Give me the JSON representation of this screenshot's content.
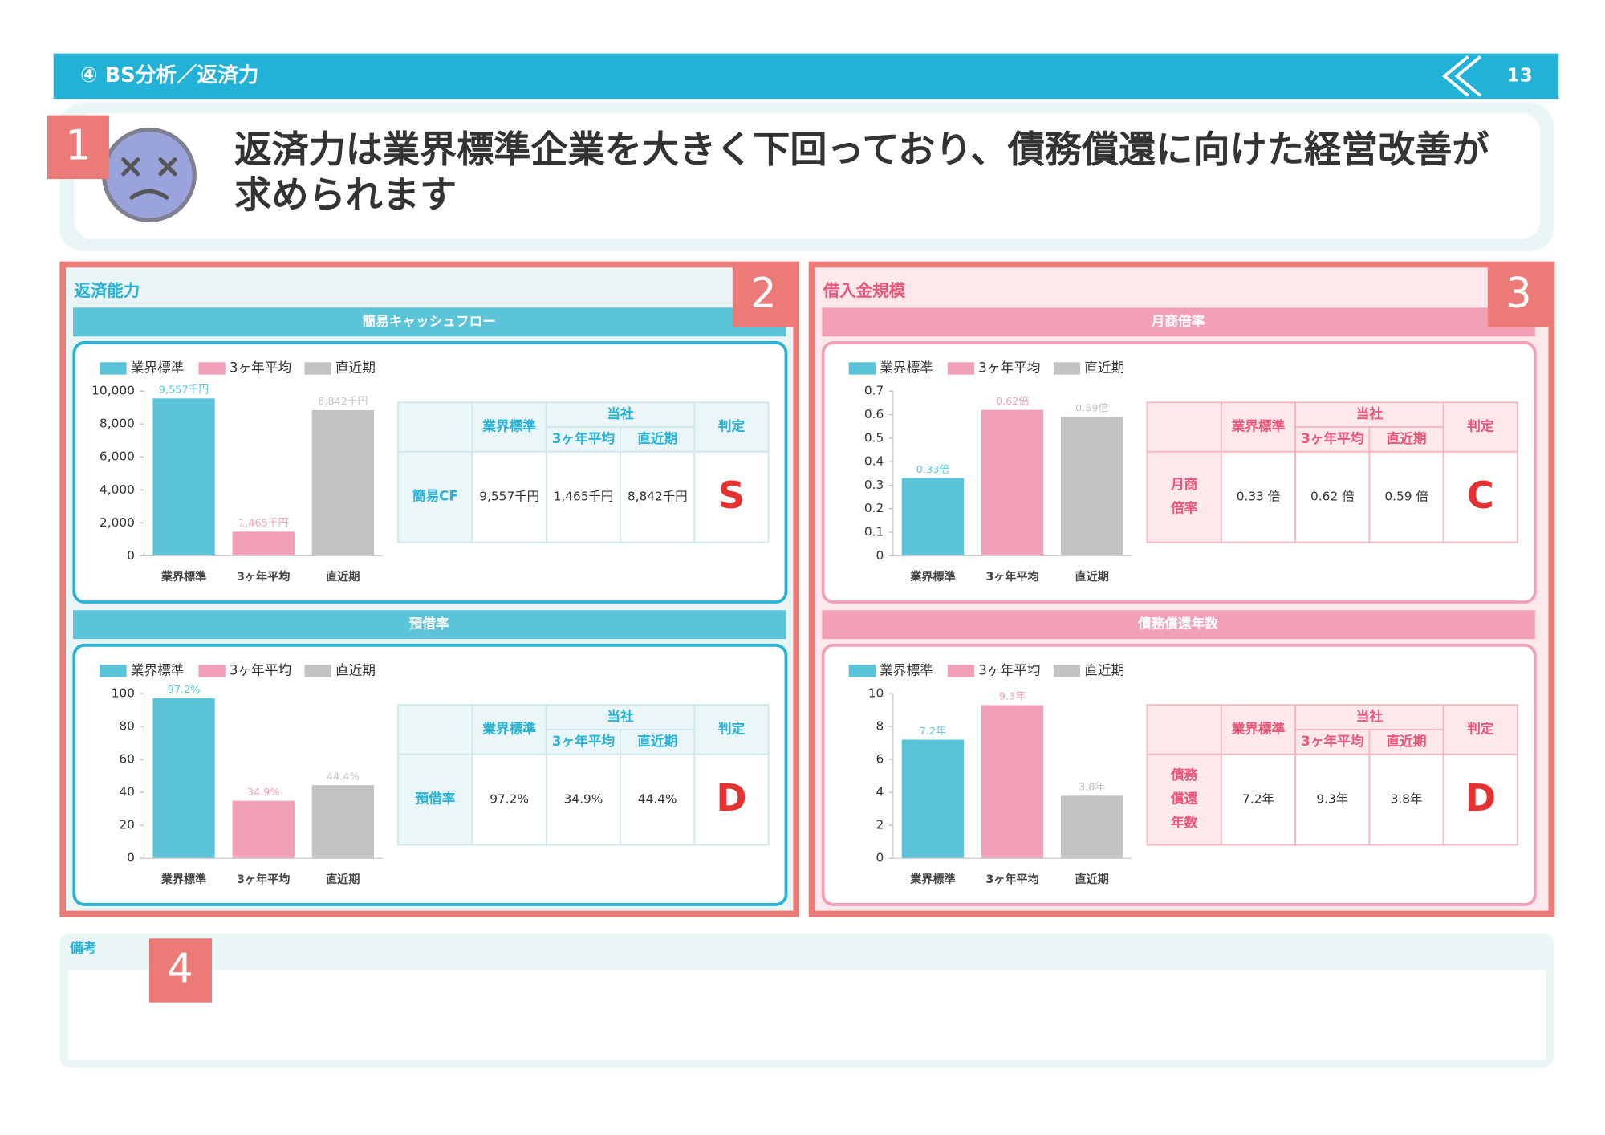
{
  "header": {
    "title": "④ BS分析／返済力",
    "page": "13"
  },
  "summary": {
    "badge": "1",
    "lines": [
      "返済力は業界標準企業を大きく下回っており、債務償還に向けた経営改善が",
      "求められます"
    ]
  },
  "panels": [
    {
      "badge": "2",
      "title": "返済能力"
    },
    {
      "badge": "3",
      "title": "借入金規模"
    }
  ],
  "chart_data": [
    {
      "type": "bar",
      "title": "簡易キャッシュフロー",
      "categories": [
        "業界標準",
        "3ヶ年平均",
        "直近期"
      ],
      "colors": [
        "#5bc4d9",
        "#f2a0b8",
        "#c2c2c2"
      ],
      "values": [
        9557,
        1465,
        8842
      ],
      "value_labels": [
        "9,557千円",
        "1,465千円",
        "8,842千円"
      ],
      "ylim": [
        0,
        10000
      ],
      "yticks": [
        0,
        {
          "value": 2000,
          "label": "2,000"
        },
        {
          "value": 4000,
          "label": "4,000"
        },
        {
          "value": 6000,
          "label": "6,000"
        },
        {
          "value": 8000,
          "label": "8,000"
        },
        {
          "value": 10000,
          "label": "10,000"
        }
      ]
    },
    {
      "type": "bar",
      "title": "預借率",
      "categories": [
        "業界標準",
        "3ヶ年平均",
        "直近期"
      ],
      "colors": [
        "#5bc4d9",
        "#f2a0b8",
        "#c2c2c2"
      ],
      "values": [
        97.2,
        34.9,
        44.4
      ],
      "value_labels": [
        "97.2%",
        "34.9%",
        "44.4%"
      ],
      "ylim": [
        0,
        100
      ],
      "yticks": [
        0,
        20,
        40,
        60,
        80,
        100
      ]
    },
    {
      "type": "bar",
      "title": "月商倍率",
      "categories": [
        "業界標準",
        "3ヶ年平均",
        "直近期"
      ],
      "colors": [
        "#5bc4d9",
        "#f2a0b8",
        "#c2c2c2"
      ],
      "values": [
        0.33,
        0.62,
        0.59
      ],
      "value_labels": [
        "0.33倍",
        "0.62倍",
        "0.59倍"
      ],
      "ylim": [
        0,
        0.7
      ],
      "yticks": [
        0,
        0.1,
        0.2,
        0.3,
        0.4,
        0.5,
        0.6,
        0.7
      ]
    },
    {
      "type": "bar",
      "title": "債務償還年数",
      "categories": [
        "業界標準",
        "3ヶ年平均",
        "直近期"
      ],
      "colors": [
        "#5bc4d9",
        "#f2a0b8",
        "#c2c2c2"
      ],
      "values": [
        7.2,
        9.3,
        3.8
      ],
      "value_labels": [
        "7.2年",
        "9.3年",
        "3.8年"
      ],
      "ylim": [
        0,
        10
      ],
      "yticks": [
        0,
        2,
        4,
        6,
        8,
        10
      ]
    }
  ],
  "tables": [
    {
      "headers": [
        "業界標準",
        "当社",
        "判定"
      ],
      "subheaders": [
        "3ヶ年平均",
        "直近期"
      ],
      "row_label": [
        "簡易CF"
      ],
      "cells": [
        "9,557千円",
        "1,465千円",
        "8,842千円"
      ],
      "grade": "S"
    },
    {
      "headers": [
        "業界標準",
        "当社",
        "判定"
      ],
      "subheaders": [
        "3ヶ年平均",
        "直近期"
      ],
      "row_label": [
        "預借率"
      ],
      "cells": [
        "97.2%",
        "34.9%",
        "44.4%"
      ],
      "grade": "D"
    },
    {
      "headers": [
        "業界標準",
        "当社",
        "判定"
      ],
      "subheaders": [
        "3ヶ年平均",
        "直近期"
      ],
      "row_label": [
        "月商",
        "倍率"
      ],
      "cells": [
        "0.33 倍",
        "0.62 倍",
        "0.59 倍"
      ],
      "grade": "C"
    },
    {
      "headers": [
        "業界標準",
        "当社",
        "判定"
      ],
      "subheaders": [
        "3ヶ年平均",
        "直近期"
      ],
      "row_label": [
        "債務",
        "償還",
        "年数"
      ],
      "cells": [
        "7.2年",
        "9.3年",
        "3.8年"
      ],
      "grade": "D"
    }
  ],
  "notes": {
    "title": "備考",
    "badge": "4"
  }
}
